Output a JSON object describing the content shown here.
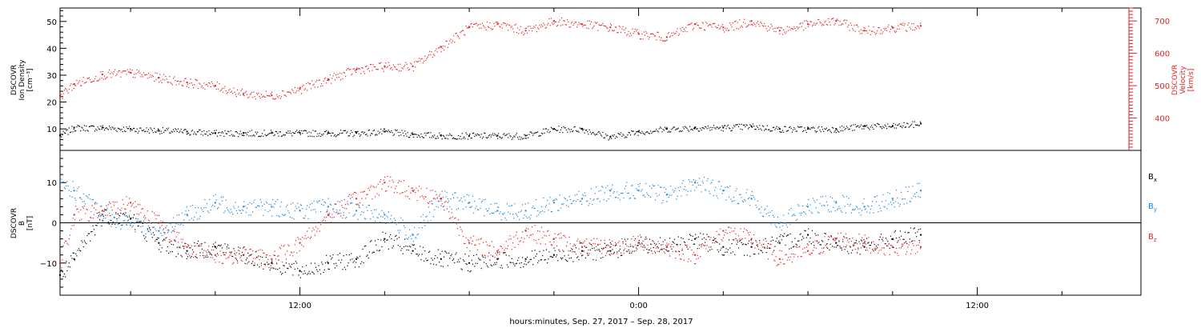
{
  "colors": {
    "black": "#000000",
    "red": "#e32222",
    "blue": "#1f86d6"
  },
  "xaxis": {
    "title": "hours:minutes, Sep. 27, 2017 – Sep. 28, 2017",
    "tick_labels": [
      "12:00",
      "0:00",
      "12:00"
    ],
    "range_hours": [
      3.5,
      41.8
    ]
  },
  "chart_data": [
    {
      "type": "scatter",
      "title": "",
      "ylabel_lines": [
        "DSCOVR",
        "Ion Density",
        "[cm⁻³]"
      ],
      "y2label_lines": [
        "DSCOVR",
        "Velocity",
        "[km/s]"
      ],
      "ylim": [
        2,
        55
      ],
      "y2lim": [
        300,
        740
      ],
      "yticks": [
        "10",
        "20",
        "30",
        "40",
        "50"
      ],
      "y2ticks": [
        "400",
        "500",
        "600",
        "700"
      ],
      "y_tick_values": [
        10,
        20,
        30,
        40,
        50
      ],
      "y2_tick_values": [
        400,
        500,
        600,
        700
      ],
      "series": [
        {
          "axis": "left",
          "color": "#000000",
          "x_hours": [
            3.5,
            4.0,
            5.0,
            6.0,
            7.0,
            8.0,
            9.0,
            10.0,
            11.0,
            12.0,
            13.0,
            14.0,
            15.0,
            16.0,
            17.0,
            18.0,
            19.0,
            20.0,
            21.0,
            22.0,
            23.0,
            24.0,
            25.0,
            26.0,
            27.0,
            28.0,
            29.0,
            30.0,
            31.0,
            32.0,
            33.0,
            34.0
          ],
          "values": [
            7.5,
            10.5,
            10.5,
            10,
            9.5,
            9,
            8.5,
            8.5,
            8.5,
            8.5,
            8.5,
            8.5,
            9,
            8,
            7.5,
            7.5,
            7.5,
            7.5,
            10,
            10,
            7,
            9,
            10,
            10.5,
            10.5,
            11,
            10,
            10,
            10,
            11,
            11,
            12
          ]
        },
        {
          "axis": "right",
          "color": "#e32222",
          "x_hours": [
            3.5,
            4.0,
            5.0,
            6.0,
            7.0,
            8.0,
            9.0,
            10.0,
            11.0,
            12.0,
            13.0,
            14.0,
            15.0,
            16.0,
            17.0,
            18.0,
            19.0,
            20.0,
            21.0,
            22.0,
            23.0,
            24.0,
            25.0,
            26.0,
            27.0,
            28.0,
            29.0,
            30.0,
            31.0,
            32.0,
            33.0,
            34.0
          ],
          "values": [
            470,
            505,
            535,
            540,
            525,
            510,
            500,
            475,
            470,
            490,
            520,
            550,
            560,
            560,
            620,
            680,
            690,
            670,
            700,
            690,
            680,
            660,
            650,
            690,
            680,
            700,
            670,
            690,
            700,
            670,
            680,
            685
          ]
        }
      ]
    },
    {
      "type": "scatter",
      "title": "",
      "ylabel_lines": [
        "DSCOVR",
        "B",
        "[nT]"
      ],
      "ylim": [
        -18,
        18
      ],
      "yticks": [
        "10",
        "0",
        "−10"
      ],
      "y_tick_values": [
        10,
        0,
        -10
      ],
      "legend_placement": "right",
      "series": [
        {
          "name": "Bx",
          "legend_main": "B",
          "legend_sub": "x",
          "color": "#000000",
          "x_hours": [
            3.5,
            4.0,
            5.0,
            6.0,
            7.0,
            8.0,
            9.0,
            10.0,
            11.0,
            12.0,
            13.0,
            14.0,
            15.0,
            16.0,
            17.0,
            18.0,
            19.0,
            20.0,
            21.0,
            22.0,
            23.0,
            24.0,
            25.0,
            26.0,
            27.0,
            28.0,
            29.0,
            30.0,
            31.0,
            32.0,
            33.0,
            34.0
          ],
          "values": [
            -13,
            -9,
            2,
            1,
            -5,
            -7,
            -6,
            -8,
            -10,
            -12,
            -10,
            -9,
            -4,
            -7,
            -9,
            -10,
            -9,
            -9,
            -8,
            -7,
            -7,
            -5,
            -6,
            -4,
            -6,
            -6,
            -5,
            -3,
            -5,
            -6,
            -4,
            -3
          ]
        },
        {
          "name": "By",
          "legend_main": "B",
          "legend_sub": "y",
          "color": "#1f86d6",
          "x_hours": [
            3.5,
            4.0,
            5.0,
            6.0,
            7.0,
            8.0,
            9.0,
            10.0,
            11.0,
            12.0,
            13.0,
            14.0,
            15.0,
            16.0,
            17.0,
            18.0,
            19.0,
            20.0,
            21.0,
            22.0,
            23.0,
            24.0,
            25.0,
            26.0,
            27.0,
            28.0,
            29.0,
            30.0,
            31.0,
            32.0,
            33.0,
            34.0
          ],
          "values": [
            10,
            8,
            2,
            0,
            -2,
            2,
            5,
            4,
            4,
            3,
            4,
            3,
            2,
            -3,
            6,
            5,
            3,
            3,
            5,
            6,
            8,
            8,
            7,
            10,
            8,
            6,
            0,
            4,
            5,
            4,
            6,
            8
          ]
        },
        {
          "name": "Bz",
          "legend_main": "B",
          "legend_sub": "z",
          "color": "#e32222",
          "x_hours": [
            3.5,
            4.0,
            5.0,
            6.0,
            7.0,
            8.0,
            9.0,
            10.0,
            11.0,
            12.0,
            13.0,
            14.0,
            15.0,
            16.0,
            17.0,
            18.0,
            19.0,
            20.0,
            21.0,
            22.0,
            23.0,
            24.0,
            25.0,
            26.0,
            27.0,
            28.0,
            29.0,
            30.0,
            31.0,
            32.0,
            33.0,
            34.0
          ],
          "values": [
            -10,
            2,
            3,
            5,
            0,
            -6,
            -8,
            -8,
            -9,
            -5,
            2,
            6,
            10,
            8,
            6,
            -5,
            -7,
            -2,
            -4,
            -6,
            -6,
            -5,
            -6,
            -8,
            -2,
            -4,
            -9,
            -7,
            -4,
            -5,
            -6,
            -6
          ]
        }
      ]
    }
  ]
}
